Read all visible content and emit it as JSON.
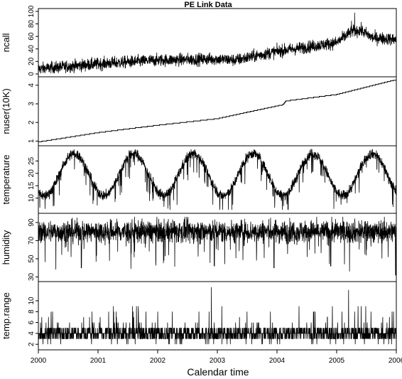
{
  "chart_data": {
    "type": "line",
    "title": "PE Link Data",
    "xlabel": "Calendar time",
    "x_ticks": [
      "2000",
      "2001",
      "2002",
      "2003",
      "2004",
      "2005",
      "2006"
    ],
    "x_range": [
      2000,
      2006
    ],
    "panels": [
      {
        "ylabel": "ncall",
        "ylim": [
          0,
          100
        ],
        "yticks": [
          0,
          20,
          40,
          60,
          80,
          100
        ],
        "style": "noisy",
        "trend": [
          [
            2000,
            8
          ],
          [
            2001,
            16
          ],
          [
            2002,
            22
          ],
          [
            2003,
            24
          ],
          [
            2003.3,
            22
          ],
          [
            2004,
            36
          ],
          [
            2005,
            50
          ],
          [
            2005.25,
            68
          ],
          [
            2005.4,
            70
          ],
          [
            2005.6,
            58
          ],
          [
            2006,
            55
          ]
        ],
        "noise": 7,
        "spikes": [
          [
            2005.3,
            98
          ],
          [
            2005.25,
            85
          ]
        ]
      },
      {
        "ylabel": "nuser(10K)",
        "ylim": [
          0.9,
          4.3
        ],
        "yticks": [
          1.0,
          2.0,
          3.0,
          4.0
        ],
        "style": "step",
        "trend": [
          [
            2000,
            0.95
          ],
          [
            2000.3,
            1.1
          ],
          [
            2001,
            1.45
          ],
          [
            2002,
            1.85
          ],
          [
            2003,
            2.2
          ],
          [
            2003.8,
            2.75
          ],
          [
            2004.1,
            2.95
          ],
          [
            2004.15,
            3.15
          ],
          [
            2005,
            3.5
          ],
          [
            2006,
            4.3
          ]
        ]
      },
      {
        "ylabel": "temperature",
        "ylim": [
          5,
          30
        ],
        "yticks": [
          10,
          15,
          20,
          25
        ],
        "style": "seasonal",
        "mean": 19.5,
        "amplitude": 8.5,
        "peak_phase": 0.6,
        "noise": 2.5
      },
      {
        "ylabel": "humidity",
        "ylim": [
          28,
          97
        ],
        "yticks": [
          30,
          50,
          70,
          90
        ],
        "style": "noisy",
        "trend": [
          [
            2000,
            80
          ],
          [
            2006,
            80
          ]
        ],
        "noise": 9,
        "dips": [
          [
            2000.72,
            40
          ],
          [
            2002.95,
            42
          ],
          [
            2003.95,
            40
          ],
          [
            2004.9,
            42
          ],
          [
            2005.99,
            32
          ]
        ]
      },
      {
        "ylabel": "temp.range",
        "ylim": [
          1.5,
          13
        ],
        "yticks": [
          2,
          4,
          6,
          8,
          10
        ],
        "style": "integer",
        "trend": [
          [
            2000,
            4
          ],
          [
            2006,
            4
          ]
        ],
        "spikes": [
          [
            2002.9,
            12.5
          ],
          [
            2005.2,
            12
          ]
        ]
      }
    ]
  }
}
